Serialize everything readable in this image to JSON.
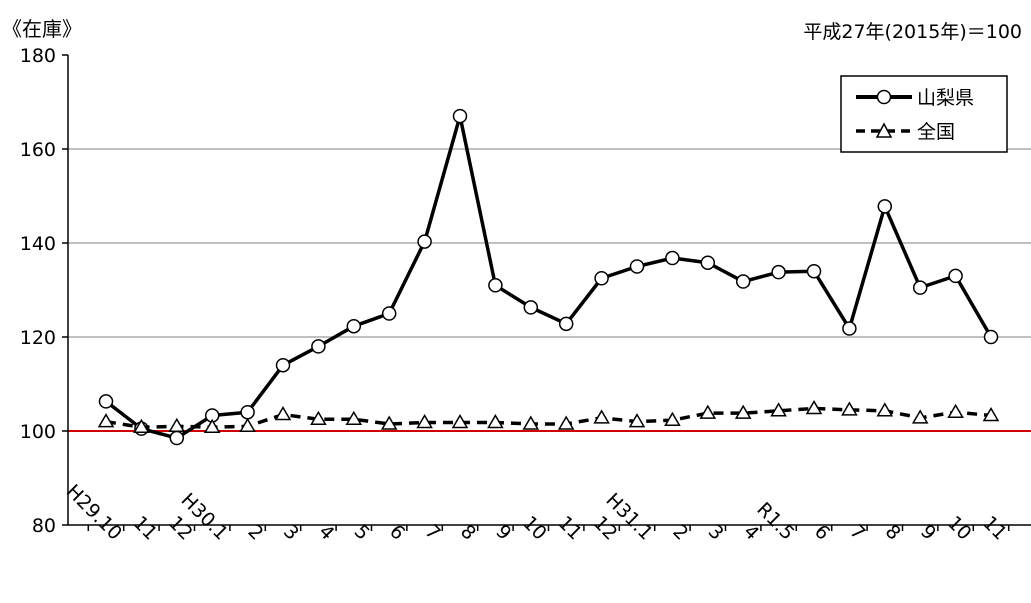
{
  "chart_data": {
    "type": "line",
    "title": "《在庫》",
    "subtitle": "平成27年(2015年)＝100",
    "categories": [
      "H29.10",
      "11",
      "12",
      "H30.1",
      "2",
      "3",
      "4",
      "5",
      "6",
      "7",
      "8",
      "9",
      "10",
      "11",
      "12",
      "H31.1",
      "2",
      "3",
      "4",
      "R1.5",
      "6",
      "7",
      "8",
      "9",
      "10",
      "11"
    ],
    "ylim": [
      80,
      180
    ],
    "yticks": [
      80,
      100,
      120,
      140,
      160,
      180
    ],
    "grid": true,
    "legend_position": "top-right",
    "reference_line": {
      "value": 100,
      "color": "#cc0000"
    },
    "series": [
      {
        "name": "山梨県",
        "style": "solid",
        "marker": "circle",
        "values": [
          106.3,
          100.5,
          98.5,
          103.3,
          104.0,
          114.0,
          118.0,
          122.3,
          125.0,
          140.3,
          167.0,
          131.0,
          126.3,
          122.8,
          132.5,
          135.0,
          136.8,
          135.8,
          131.8,
          133.8,
          134.0,
          121.8,
          147.8,
          130.5,
          133.0,
          120.0
        ]
      },
      {
        "name": "全国",
        "style": "dashed",
        "marker": "triangle",
        "values": [
          102.0,
          100.8,
          101.0,
          100.8,
          101.0,
          103.5,
          102.5,
          102.5,
          101.5,
          101.8,
          101.8,
          101.8,
          101.5,
          101.5,
          102.8,
          102.0,
          102.3,
          103.8,
          103.8,
          104.3,
          104.8,
          104.5,
          104.3,
          102.8,
          104.0,
          103.3
        ]
      }
    ]
  }
}
